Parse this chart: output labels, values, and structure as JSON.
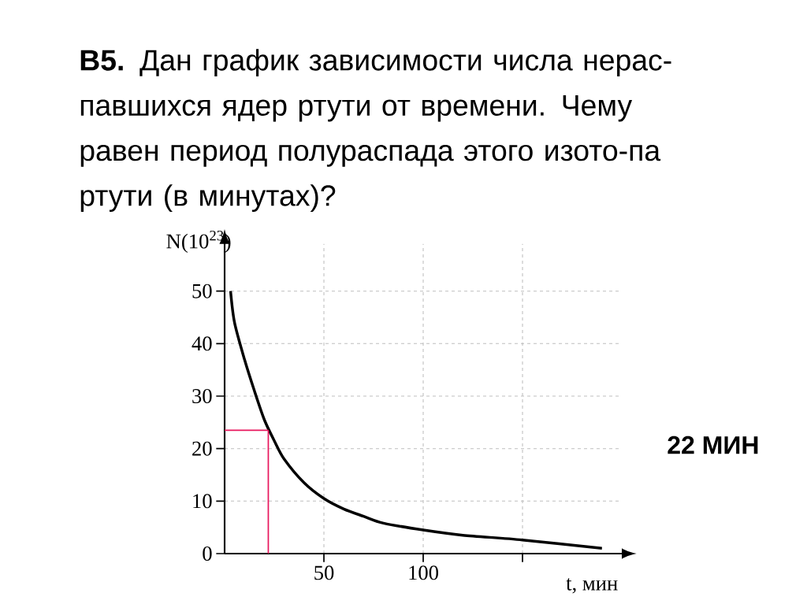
{
  "chart_data": {
    "type": "line",
    "title": "**В5.** Дан график зависимости числа нерас-павшихся ядер ртути от времени. Чему равен период полураспада этого изото-па ртути (в минутах)?",
    "xlabel": "t, мин",
    "ylabel": "N(10$^{23}$)",
    "annotations": [
      "22 МИН"
    ],
    "series": [
      {
        "color": "#000000",
        "x": [
          3,
          5,
          10,
          15,
          20,
          25,
          30,
          40,
          50,
          60,
          70,
          80,
          100,
          120,
          150,
          190
        ],
        "values": [
          50,
          44,
          37,
          31,
          25.5,
          21.5,
          18,
          13.5,
          10.5,
          8.5,
          7.1,
          5.8,
          4.5,
          3.5,
          2.6,
          1
        ]
      },
      {
        "color": "#e8175d",
        "x": [
          0,
          22
        ],
        "values": [
          23.5,
          23.5
        ]
      },
      {
        "color": "#e8175d",
        "x": [
          22,
          22
        ],
        "values": [
          23.5,
          0
        ]
      }
    ],
    "xlim": [
      0,
      200
    ],
    "ylim": [
      0,
      59
    ],
    "xticks": [
      50,
      100,
      {
        "value": 150,
        "label": null
      }
    ],
    "yticks": [
      0,
      10,
      20,
      30,
      40,
      50
    ],
    "grid": true
  }
}
